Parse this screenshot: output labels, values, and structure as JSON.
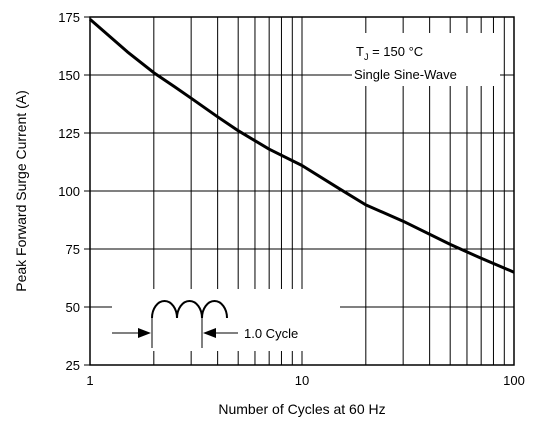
{
  "chart_data": {
    "type": "line",
    "title": "",
    "xlabel": "Number of Cycles at 60 Hz",
    "ylabel": "Peak Forward Surge Current (A)",
    "x_scale": "log",
    "xlim": [
      1,
      100
    ],
    "ylim": [
      25,
      175
    ],
    "grid": true,
    "x_ticks": [
      {
        "value": 1,
        "label": "1"
      },
      {
        "value": 10,
        "label": "10"
      },
      {
        "value": 100,
        "label": "100"
      }
    ],
    "y_ticks": [
      {
        "value": 25,
        "label": "25"
      },
      {
        "value": 50,
        "label": "50"
      },
      {
        "value": 75,
        "label": "75"
      },
      {
        "value": 100,
        "label": "100"
      },
      {
        "value": 125,
        "label": "125"
      },
      {
        "value": 150,
        "label": "150"
      },
      {
        "value": 175,
        "label": "175"
      }
    ],
    "series": [
      {
        "x": [
          1,
          1.5,
          2,
          2.5,
          3,
          4,
          5,
          7,
          10,
          15,
          20,
          30,
          50,
          70,
          100
        ],
        "y": [
          174,
          160,
          151,
          145,
          140,
          132,
          126,
          118,
          111,
          101,
          94,
          87,
          77,
          71,
          65
        ]
      }
    ],
    "annotations": {
      "condition_tj_main": "T",
      "condition_tj_sub": "J",
      "condition_tj_rest": " = 150 °C",
      "condition_wave": "Single Sine-Wave",
      "cycle_label": "1.0 Cycle"
    }
  },
  "colors": {
    "line": "#000000",
    "grid": "#000000",
    "background": "#ffffff"
  }
}
